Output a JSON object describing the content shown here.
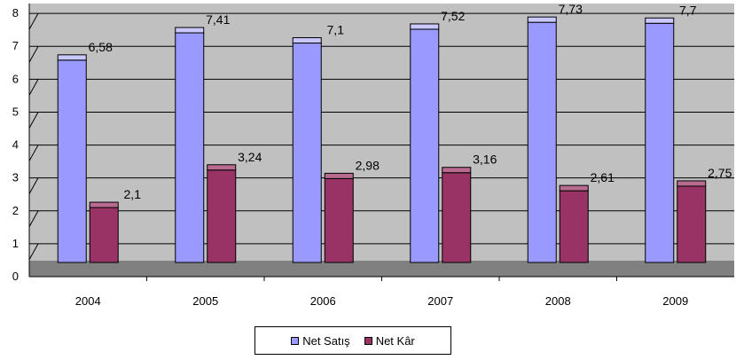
{
  "chart_data": {
    "type": "bar",
    "categories": [
      "2004",
      "2005",
      "2006",
      "2007",
      "2008",
      "2009"
    ],
    "series": [
      {
        "name": "Net Satış",
        "values": [
          6.58,
          7.41,
          7.1,
          7.52,
          7.73,
          7.7
        ],
        "labels": [
          "6,58",
          "7,41",
          "7,1",
          "7,52",
          "7,73",
          "7,7"
        ],
        "color": "#9999ff",
        "color_light": "#c9c9ff"
      },
      {
        "name": "Net Kâr",
        "values": [
          2.1,
          3.24,
          2.98,
          3.16,
          2.61,
          2.75
        ],
        "labels": [
          "2,1",
          "3,24",
          "2,98",
          "3,16",
          "2,61",
          "2,75"
        ],
        "color": "#993366",
        "color_light": "#b86a8f"
      }
    ],
    "yticks": [
      "0",
      "1",
      "2",
      "3",
      "4",
      "5",
      "6",
      "7",
      "8"
    ],
    "ylim": [
      0,
      8.3
    ],
    "grid": true,
    "legend_position": "bottom",
    "plot_background": "#c0c0c0",
    "floor_color": "#808080"
  }
}
